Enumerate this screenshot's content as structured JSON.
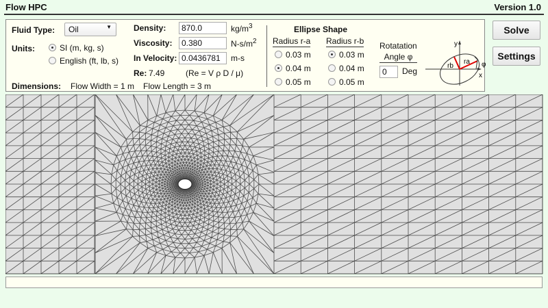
{
  "app": {
    "title": "Flow HPC",
    "version": "Version 1.0"
  },
  "fluid": {
    "label": "Fluid Type:",
    "selected": "Oil"
  },
  "units": {
    "label": "Units:",
    "options": [
      {
        "label": "SI (m, kg, s)",
        "selected": true
      },
      {
        "label": "English (ft, lb, s)",
        "selected": false
      }
    ]
  },
  "props": {
    "density": {
      "label": "Density:",
      "value": "870.0",
      "unit": "kg/m",
      "sup": "3"
    },
    "viscosity": {
      "label": "Viscosity:",
      "value": "0.380",
      "unit": "N-s/m",
      "sup": "2"
    },
    "velocity": {
      "label": "In Velocity:",
      "value": "0.0436781",
      "unit": "m-s"
    },
    "re": {
      "label": "Re:",
      "value": "7.49",
      "formula": "(Re = V ρ D / μ)"
    }
  },
  "dimensions": {
    "label": "Dimensions:",
    "width": "Flow Width = 1 m",
    "length": "Flow Length = 3 m"
  },
  "ellipse": {
    "title": "Ellipse Shape",
    "ra": {
      "label": "Radius r-a",
      "options": [
        {
          "label": "0.03 m",
          "selected": false
        },
        {
          "label": "0.04 m",
          "selected": true
        },
        {
          "label": "0.05 m",
          "selected": false
        }
      ]
    },
    "rb": {
      "label": "Radius r-b",
      "options": [
        {
          "label": "0.03 m",
          "selected": true
        },
        {
          "label": "0.04 m",
          "selected": false
        },
        {
          "label": "0.05 m",
          "selected": false
        }
      ]
    },
    "rotation": {
      "label1": "Rotatation",
      "label2": "Angle φ",
      "value": "0",
      "unit": "Deg"
    },
    "diagram": {
      "x": "x",
      "y": "y",
      "ra": "ra",
      "rb": "rb",
      "phi": "φ",
      "accent": "#e00000"
    }
  },
  "buttons": {
    "solve": "Solve",
    "settings": "Settings"
  },
  "status": {
    "text": ""
  },
  "colors": {
    "background": "#ecfcec",
    "panel": "#fffff2",
    "mesh_fill": "#e0e0e0",
    "mesh_line": "#333333"
  }
}
